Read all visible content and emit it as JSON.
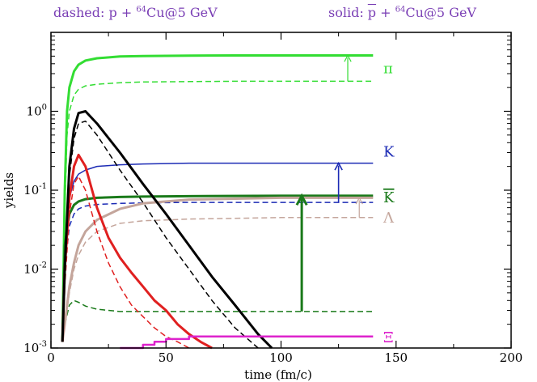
{
  "header": {
    "left_prefix": "dashed: p + ",
    "left_mass": "64",
    "left_suffix": "Cu@5 GeV",
    "right_prefix": "solid: ",
    "right_pbar": "p",
    "right_plus": " + ",
    "right_mass": "64",
    "right_suffix": "Cu@5 GeV"
  },
  "chart_data": {
    "type": "line",
    "xlabel": "time (fm/c)",
    "ylabel": "yields",
    "xlim": [
      0,
      200
    ],
    "ylim": [
      0.001,
      10
    ],
    "yscale": "log",
    "xticks": [
      0,
      50,
      100,
      150,
      200
    ],
    "yticks": [
      {
        "base": "10",
        "exp": "-3",
        "value": 0.001
      },
      {
        "base": "10",
        "exp": "-2",
        "value": 0.01
      },
      {
        "base": "10",
        "exp": "-1",
        "value": 0.1
      },
      {
        "base": "10",
        "exp": "0",
        "value": 1
      }
    ],
    "series": [
      {
        "name": "pi solid",
        "color": "#33dd33",
        "style": "solid",
        "width": 3,
        "x": [
          5,
          6,
          7,
          8,
          10,
          12,
          15,
          20,
          30,
          40,
          60,
          80,
          100,
          140
        ],
        "y": [
          0.0012,
          0.1,
          1.0,
          2.0,
          3.2,
          3.9,
          4.4,
          4.7,
          4.95,
          5.02,
          5.08,
          5.1,
          5.1,
          5.1
        ]
      },
      {
        "name": "pi dashed",
        "color": "#33dd33",
        "style": "dashed",
        "width": 1.5,
        "x": [
          5,
          6,
          7,
          8,
          10,
          12,
          15,
          20,
          30,
          40,
          60,
          80,
          100,
          140
        ],
        "y": [
          0.0012,
          0.05,
          0.5,
          1.0,
          1.6,
          1.9,
          2.1,
          2.2,
          2.3,
          2.35,
          2.38,
          2.4,
          2.4,
          2.4
        ]
      },
      {
        "name": "K solid",
        "color": "#1c2bb5",
        "style": "solid",
        "width": 1.5,
        "x": [
          5,
          6,
          8,
          10,
          12,
          15,
          20,
          30,
          40,
          60,
          100,
          140
        ],
        "y": [
          0.0012,
          0.02,
          0.08,
          0.13,
          0.16,
          0.18,
          0.2,
          0.21,
          0.215,
          0.22,
          0.22,
          0.22
        ]
      },
      {
        "name": "K dashed",
        "color": "#1c2bb5",
        "style": "dashed",
        "width": 1.5,
        "x": [
          5,
          6,
          8,
          10,
          12,
          15,
          20,
          30,
          40,
          60,
          100,
          140
        ],
        "y": [
          0.0012,
          0.01,
          0.035,
          0.05,
          0.058,
          0.063,
          0.066,
          0.068,
          0.069,
          0.07,
          0.07,
          0.07
        ]
      },
      {
        "name": "Kbar solid",
        "color": "#1a7a1a",
        "style": "solid",
        "width": 3,
        "x": [
          5,
          6,
          8,
          10,
          12,
          15,
          20,
          30,
          40,
          60,
          100,
          140
        ],
        "y": [
          0.0012,
          0.02,
          0.05,
          0.065,
          0.072,
          0.077,
          0.08,
          0.082,
          0.083,
          0.084,
          0.085,
          0.085
        ]
      },
      {
        "name": "Kbar dashed",
        "color": "#1a7a1a",
        "style": "dashed",
        "width": 1.5,
        "x": [
          5,
          6,
          8,
          10,
          12,
          15,
          20,
          25,
          30,
          40,
          60,
          100,
          140
        ],
        "y": [
          0.0012,
          0.002,
          0.0035,
          0.004,
          0.0038,
          0.0034,
          0.0031,
          0.003,
          0.0029,
          0.0029,
          0.0029,
          0.0029,
          0.0029
        ]
      },
      {
        "name": "Lambda solid",
        "color": "#c4a59b",
        "style": "solid",
        "width": 3,
        "x": [
          5,
          6,
          8,
          10,
          12,
          15,
          20,
          30,
          40,
          60,
          100,
          140
        ],
        "y": [
          0.0012,
          0.002,
          0.006,
          0.012,
          0.02,
          0.03,
          0.042,
          0.058,
          0.068,
          0.076,
          0.08,
          0.08
        ]
      },
      {
        "name": "Lambda dashed",
        "color": "#c4a59b",
        "style": "dashed",
        "width": 1.5,
        "x": [
          5,
          6,
          8,
          10,
          12,
          15,
          20,
          30,
          40,
          60,
          100,
          140
        ],
        "y": [
          0.0012,
          0.002,
          0.005,
          0.01,
          0.015,
          0.022,
          0.03,
          0.038,
          0.041,
          0.043,
          0.045,
          0.045
        ]
      },
      {
        "name": "proton-like solid",
        "color": "#e02020",
        "style": "solid",
        "width": 3,
        "x": [
          5,
          6,
          8,
          10,
          12,
          15,
          20,
          25,
          30,
          35,
          40,
          45,
          50,
          55,
          60,
          65,
          70
        ],
        "y": [
          0.0012,
          0.01,
          0.08,
          0.2,
          0.28,
          0.2,
          0.06,
          0.025,
          0.014,
          0.009,
          0.006,
          0.004,
          0.003,
          0.002,
          0.0015,
          0.0012,
          0.001
        ]
      },
      {
        "name": "proton-like dashed",
        "color": "#e02020",
        "style": "dashed",
        "width": 1.5,
        "x": [
          5,
          6,
          8,
          10,
          12,
          15,
          20,
          25,
          30,
          35,
          40,
          45,
          50,
          55,
          60
        ],
        "y": [
          0.0012,
          0.006,
          0.05,
          0.12,
          0.15,
          0.1,
          0.03,
          0.012,
          0.006,
          0.0035,
          0.0025,
          0.0018,
          0.0014,
          0.0012,
          0.001
        ]
      },
      {
        "name": "total solid",
        "color": "#000000",
        "style": "solid",
        "width": 3,
        "x": [
          5,
          6,
          8,
          10,
          12,
          15,
          20,
          30,
          40,
          50,
          60,
          70,
          80,
          90,
          96
        ],
        "y": [
          0.0012,
          0.01,
          0.2,
          0.6,
          0.95,
          1.0,
          0.7,
          0.3,
          0.12,
          0.05,
          0.02,
          0.008,
          0.0035,
          0.0015,
          0.001
        ]
      },
      {
        "name": "total dashed",
        "color": "#000000",
        "style": "dashed",
        "width": 1.5,
        "x": [
          5,
          6,
          8,
          10,
          12,
          15,
          20,
          30,
          40,
          50,
          60,
          70,
          80,
          90
        ],
        "y": [
          0.0012,
          0.01,
          0.15,
          0.45,
          0.7,
          0.75,
          0.5,
          0.18,
          0.07,
          0.025,
          0.01,
          0.004,
          0.0018,
          0.001
        ]
      },
      {
        "name": "Xi solid",
        "color": "#dd22cc",
        "style": "step",
        "width": 2.5,
        "x": [
          30,
          40,
          40,
          45,
          45,
          50,
          50,
          60,
          60,
          140
        ],
        "y": [
          0.001,
          0.001,
          0.0011,
          0.0011,
          0.0012,
          0.0012,
          0.0013,
          0.0013,
          0.0014,
          0.0014
        ]
      }
    ],
    "arrows": [
      {
        "name": "pi",
        "color": "#33dd33",
        "x": 129,
        "from": 2.4,
        "to": 5.1,
        "width": 1.2
      },
      {
        "name": "K",
        "color": "#1c2bb5",
        "x": 125,
        "from": 0.07,
        "to": 0.22,
        "width": 1.6
      },
      {
        "name": "Kbar",
        "color": "#1a7a1a",
        "x": 109,
        "from": 0.0029,
        "to": 0.085,
        "width": 3
      },
      {
        "name": "Lambda",
        "color": "#c4a59b",
        "x": 134,
        "from": 0.045,
        "to": 0.08,
        "width": 1.2
      }
    ],
    "particle_labels": [
      {
        "name": "pi",
        "text": "π",
        "color": "#33dd33",
        "value": 2.4
      },
      {
        "name": "K",
        "text": "K",
        "color": "#1c2bb5",
        "value": 0.22
      },
      {
        "name": "Kbar",
        "text": "K",
        "overline": true,
        "color": "#1a7a1a",
        "value": 0.085
      },
      {
        "name": "Lambda",
        "text": "Λ",
        "color": "#c4a59b",
        "value": 0.045
      },
      {
        "name": "Xi",
        "text": "Ξ",
        "color": "#dd22cc",
        "value": 0.0014
      }
    ]
  }
}
